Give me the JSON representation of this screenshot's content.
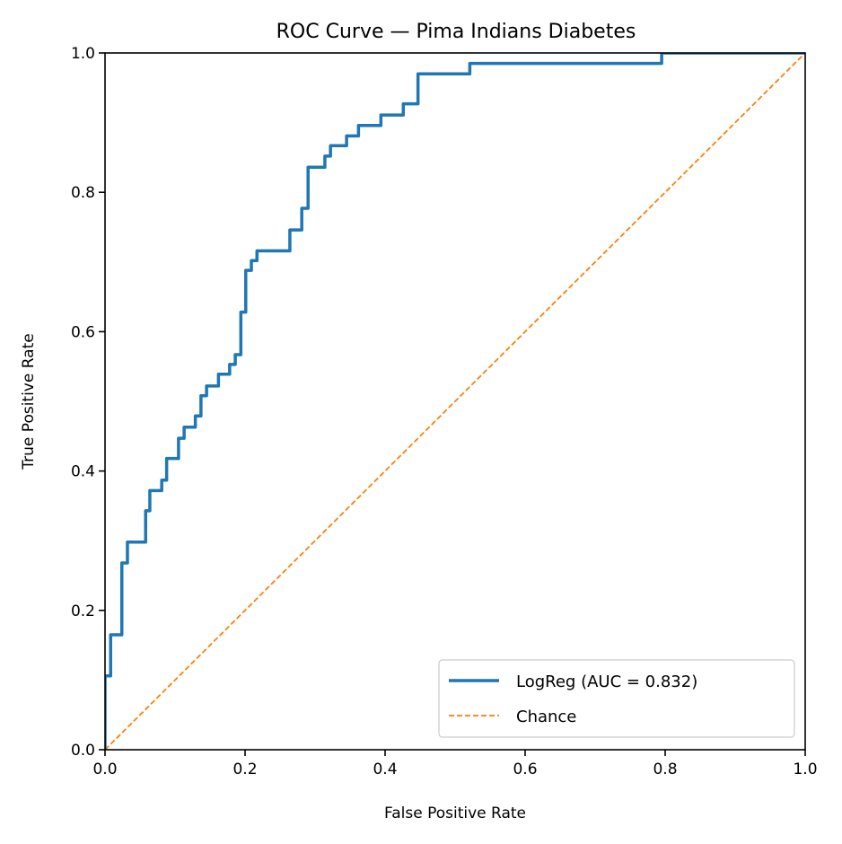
{
  "chart_data": {
    "type": "line",
    "title": "ROC Curve — Pima Indians Diabetes",
    "xlabel": "False Positive Rate",
    "ylabel": "True Positive Rate",
    "xlim": [
      0,
      1
    ],
    "ylim": [
      0,
      1
    ],
    "xticks": [
      "0.0",
      "0.2",
      "0.4",
      "0.6",
      "0.8",
      "1.0"
    ],
    "yticks": [
      "0.0",
      "0.2",
      "0.4",
      "0.6",
      "0.8",
      "1.0"
    ],
    "grid": false,
    "legend_position": "lower-right",
    "series": [
      {
        "name": "LogReg (AUC = 0.832)",
        "color": "#1f77b4",
        "style": "solid",
        "x": [
          0,
          0,
          0.008,
          0.008,
          0.024,
          0.024,
          0.032,
          0.032,
          0.058,
          0.058,
          0.064,
          0.064,
          0.081,
          0.081,
          0.088,
          0.088,
          0.105,
          0.105,
          0.113,
          0.113,
          0.129,
          0.129,
          0.137,
          0.137,
          0.145,
          0.145,
          0.162,
          0.162,
          0.178,
          0.178,
          0.186,
          0.186,
          0.194,
          0.194,
          0.201,
          0.201,
          0.209,
          0.209,
          0.217,
          0.217,
          0.264,
          0.264,
          0.281,
          0.281,
          0.29,
          0.29,
          0.314,
          0.314,
          0.322,
          0.322,
          0.345,
          0.345,
          0.362,
          0.362,
          0.394,
          0.394,
          0.426,
          0.426,
          0.447,
          0.447,
          0.521,
          0.521,
          0.795,
          0.795,
          1.0
        ],
        "y": [
          0,
          0.106,
          0.106,
          0.165,
          0.165,
          0.268,
          0.268,
          0.298,
          0.298,
          0.343,
          0.343,
          0.372,
          0.372,
          0.387,
          0.387,
          0.418,
          0.418,
          0.447,
          0.447,
          0.463,
          0.463,
          0.479,
          0.479,
          0.508,
          0.508,
          0.522,
          0.522,
          0.539,
          0.539,
          0.553,
          0.553,
          0.567,
          0.567,
          0.628,
          0.628,
          0.688,
          0.688,
          0.702,
          0.702,
          0.716,
          0.716,
          0.746,
          0.746,
          0.777,
          0.777,
          0.836,
          0.836,
          0.852,
          0.852,
          0.867,
          0.867,
          0.881,
          0.881,
          0.896,
          0.896,
          0.911,
          0.911,
          0.927,
          0.927,
          0.97,
          0.97,
          0.985,
          0.985,
          1.0,
          1.0
        ]
      },
      {
        "name": "Chance",
        "color": "#ff7f0e",
        "style": "dashed",
        "x": [
          0,
          1
        ],
        "y": [
          0,
          1
        ]
      }
    ]
  }
}
